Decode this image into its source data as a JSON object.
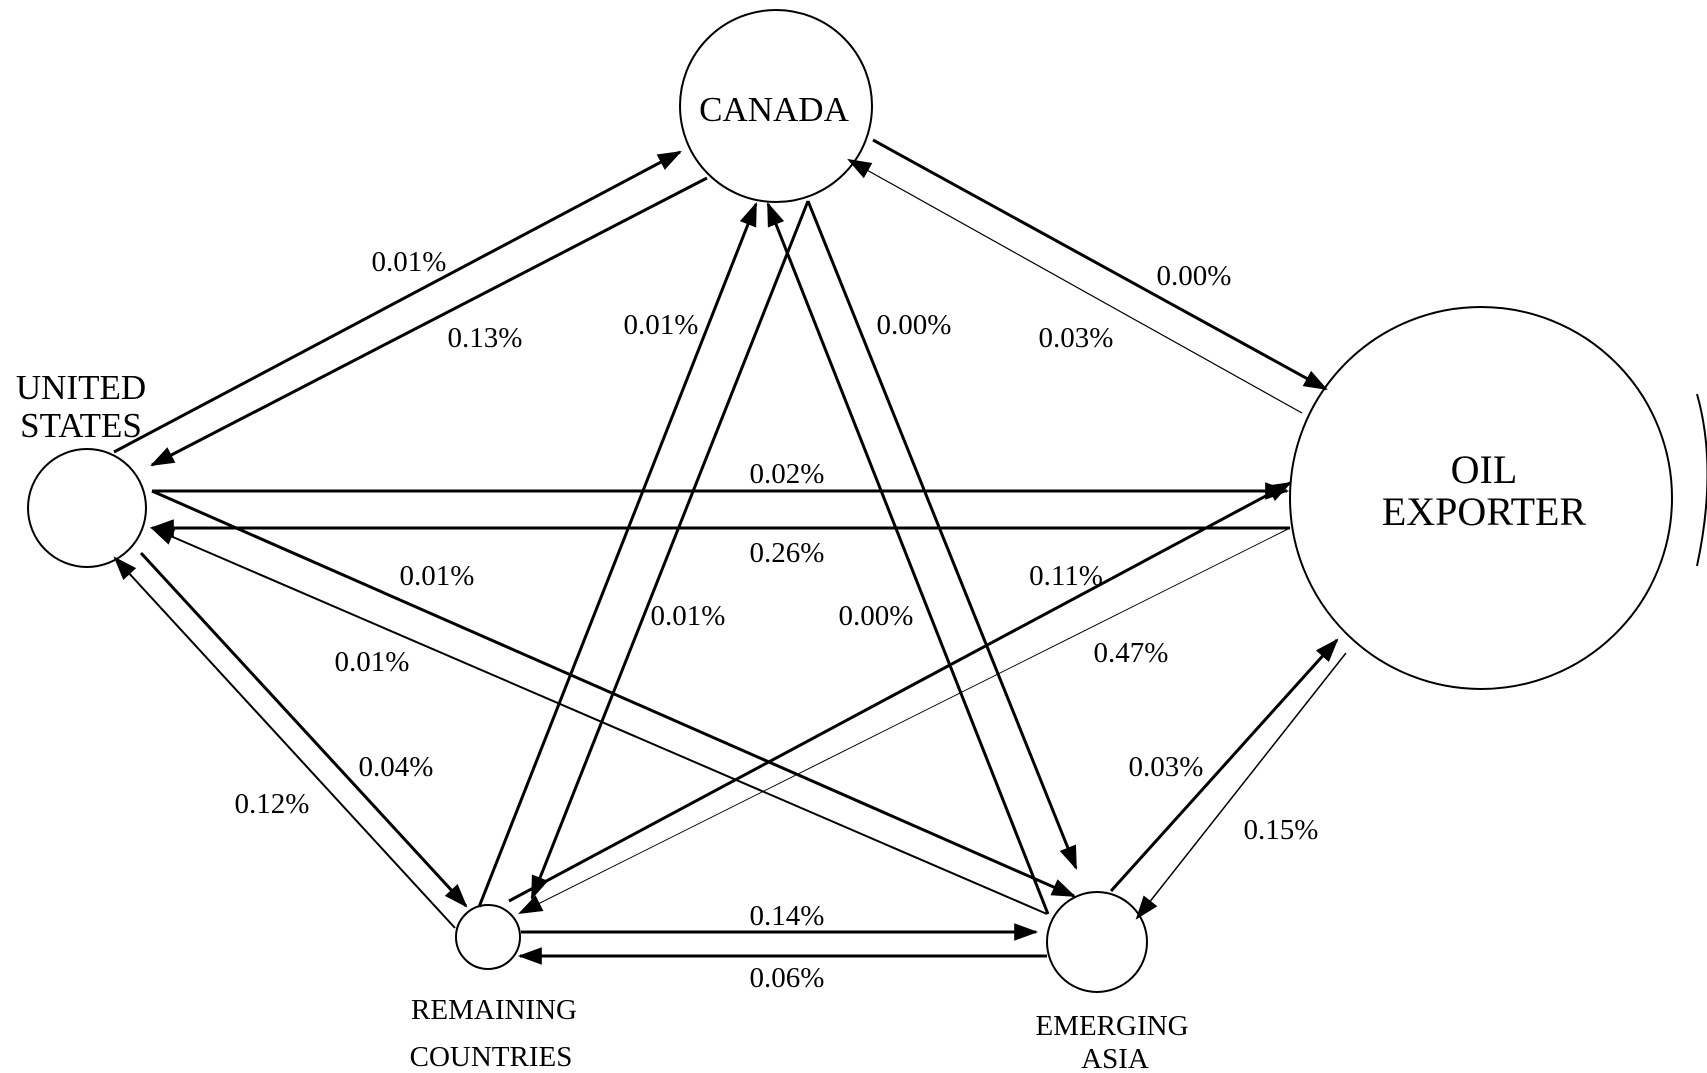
{
  "nodes": {
    "canada": {
      "label_lines": [
        "CANADA"
      ]
    },
    "united_states": {
      "label_lines": [
        "UNITED",
        "STATES"
      ]
    },
    "oil_exporter": {
      "label_lines": [
        "OIL",
        "EXPORTER"
      ]
    },
    "remaining_countries": {
      "label_lines": [
        "REMAINING",
        "COUNTRIES"
      ]
    },
    "emerging_asia": {
      "label_lines": [
        "EMERGING",
        "ASIA"
      ]
    }
  },
  "edges": [
    {
      "from": "United States",
      "to": "Canada",
      "value": "0.01%"
    },
    {
      "from": "Canada",
      "to": "United States",
      "value": "0.13%"
    },
    {
      "from": "Canada",
      "to": "Oil Exporter",
      "value": "0.00%"
    },
    {
      "from": "Oil Exporter",
      "to": "Canada",
      "value": "0.03%"
    },
    {
      "from": "Remaining Countries",
      "to": "Canada",
      "value": "0.01%"
    },
    {
      "from": "Emerging Asia",
      "to": "Canada",
      "value": "0.00%"
    },
    {
      "from": "Canada",
      "to": "Emerging Asia",
      "value": "0.00%"
    },
    {
      "from": "Canada",
      "to": "Remaining Countries",
      "value": "0.01%"
    },
    {
      "from": "United States",
      "to": "Oil Exporter",
      "value": "0.02%"
    },
    {
      "from": "Oil Exporter",
      "to": "United States",
      "value": "0.26%"
    },
    {
      "from": "United States",
      "to": "Emerging Asia",
      "value": "0.01%"
    },
    {
      "from": "Emerging Asia",
      "to": "United States",
      "value": "0.01%"
    },
    {
      "from": "Remaining Countries",
      "to": "Oil Exporter",
      "value": "0.11%"
    },
    {
      "from": "Oil Exporter",
      "to": "Remaining Countries",
      "value": "0.47%"
    },
    {
      "from": "United States",
      "to": "Remaining Countries",
      "value": "0.04%"
    },
    {
      "from": "Remaining Countries",
      "to": "United States",
      "value": "0.12%"
    },
    {
      "from": "Emerging Asia",
      "to": "Oil Exporter",
      "value": "0.03%"
    },
    {
      "from": "Oil Exporter",
      "to": "Emerging Asia",
      "value": "0.15%"
    },
    {
      "from": "Remaining Countries",
      "to": "Emerging Asia",
      "value": "0.14%"
    },
    {
      "from": "Emerging Asia",
      "to": "Remaining Countries",
      "value": "0.06%"
    }
  ]
}
